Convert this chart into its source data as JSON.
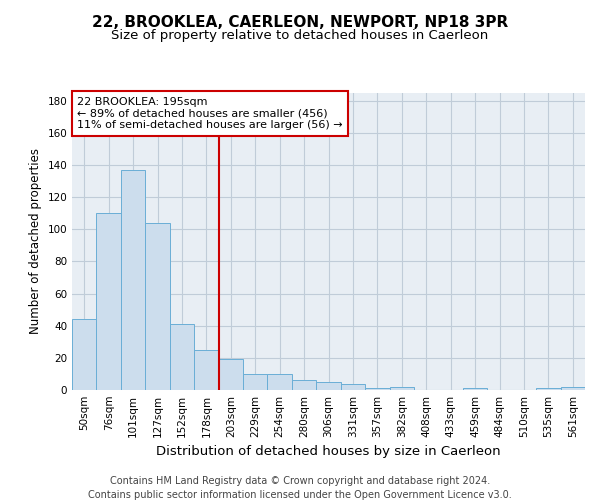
{
  "title": "22, BROOKLEA, CAERLEON, NEWPORT, NP18 3PR",
  "subtitle": "Size of property relative to detached houses in Caerleon",
  "xlabel": "Distribution of detached houses by size in Caerleon",
  "ylabel": "Number of detached properties",
  "bar_labels": [
    "50sqm",
    "76sqm",
    "101sqm",
    "127sqm",
    "152sqm",
    "178sqm",
    "203sqm",
    "229sqm",
    "254sqm",
    "280sqm",
    "306sqm",
    "331sqm",
    "357sqm",
    "382sqm",
    "408sqm",
    "433sqm",
    "459sqm",
    "484sqm",
    "510sqm",
    "535sqm",
    "561sqm"
  ],
  "bar_heights": [
    44,
    110,
    137,
    104,
    41,
    25,
    19,
    10,
    10,
    6,
    5,
    4,
    1,
    2,
    0,
    0,
    1,
    0,
    0,
    1,
    2
  ],
  "bar_color": "#ccdded",
  "bar_edge_color": "#6aaed6",
  "red_line_index": 6,
  "red_line_color": "#cc0000",
  "annotation_line1": "22 BROOKLEA: 195sqm",
  "annotation_line2": "← 89% of detached houses are smaller (456)",
  "annotation_line3": "11% of semi-detached houses are larger (56) →",
  "annotation_box_color": "#ffffff",
  "annotation_box_edge": "#cc0000",
  "ylim": [
    0,
    185
  ],
  "yticks": [
    0,
    20,
    40,
    60,
    80,
    100,
    120,
    140,
    160,
    180
  ],
  "footer": "Contains HM Land Registry data © Crown copyright and database right 2024.\nContains public sector information licensed under the Open Government Licence v3.0.",
  "title_fontsize": 11,
  "subtitle_fontsize": 9.5,
  "xlabel_fontsize": 9.5,
  "ylabel_fontsize": 8.5,
  "tick_fontsize": 7.5,
  "annotation_fontsize": 8,
  "footer_fontsize": 7,
  "bg_color": "#ffffff",
  "plot_bg_color": "#e8eef4",
  "grid_color": "#c0ccd8"
}
